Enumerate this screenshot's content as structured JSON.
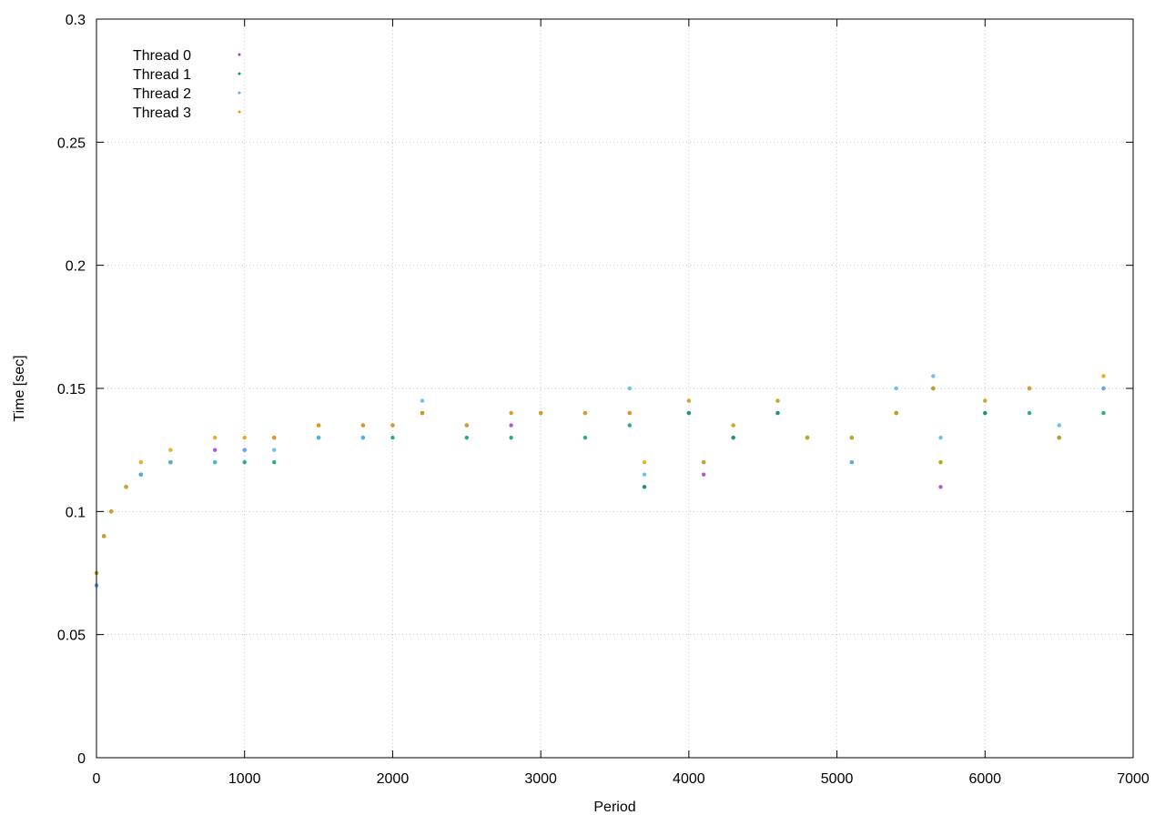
{
  "chart_data": {
    "type": "scatter",
    "title": "",
    "xlabel": "Period",
    "ylabel": "Time [sec]",
    "xlim": [
      0,
      7000
    ],
    "ylim": [
      0,
      0.3
    ],
    "x_ticks": [
      0,
      1000,
      2000,
      3000,
      4000,
      5000,
      6000,
      7000
    ],
    "x_tick_labels": [
      "0",
      "1000",
      "2000",
      "3000",
      "4000",
      "5000",
      "6000",
      "7000"
    ],
    "y_ticks": [
      0,
      0.05,
      0.1,
      0.15,
      0.2,
      0.25,
      0.3
    ],
    "y_tick_labels": [
      "0",
      "0.05",
      "0.1",
      "0.15",
      "0.2",
      "0.25",
      "0.3"
    ],
    "grid": true,
    "legend_position": "top-left",
    "series": [
      {
        "name": "Thread 0",
        "color": "#a040c0",
        "x": [
          0,
          50,
          100,
          200,
          300,
          500,
          800,
          1000,
          1200,
          1500,
          1800,
          2000,
          2200,
          2500,
          2800,
          3000,
          3300,
          3600,
          3700,
          4000,
          4100,
          4300,
          4600,
          4800,
          5100,
          5400,
          5650,
          5700,
          6000,
          6300,
          6500,
          6800
        ],
        "y": [
          0.07,
          0.09,
          0.1,
          0.11,
          0.115,
          0.12,
          0.125,
          0.125,
          0.13,
          0.135,
          0.135,
          0.135,
          0.14,
          0.135,
          0.135,
          0.14,
          0.14,
          0.14,
          0.11,
          0.14,
          0.115,
          0.13,
          0.14,
          0.13,
          0.12,
          0.14,
          0.15,
          0.11,
          0.14,
          0.15,
          0.13,
          0.15
        ]
      },
      {
        "name": "Thread 1",
        "color": "#009e73",
        "x": [
          0,
          50,
          100,
          200,
          300,
          500,
          800,
          1000,
          1200,
          1500,
          1800,
          2000,
          2200,
          2500,
          2800,
          3000,
          3300,
          3600,
          3700,
          4000,
          4100,
          4300,
          4600,
          4800,
          5100,
          5400,
          5650,
          5700,
          6000,
          6300,
          6500,
          6800
        ],
        "y": [
          0.075,
          0.09,
          0.1,
          0.11,
          0.115,
          0.12,
          0.12,
          0.12,
          0.12,
          0.13,
          0.13,
          0.13,
          0.14,
          0.13,
          0.13,
          0.14,
          0.13,
          0.135,
          0.11,
          0.14,
          0.12,
          0.13,
          0.14,
          0.13,
          0.13,
          0.14,
          0.15,
          0.12,
          0.14,
          0.14,
          0.13,
          0.14
        ]
      },
      {
        "name": "Thread 2",
        "color": "#56b4e9",
        "x": [
          0,
          50,
          100,
          200,
          300,
          500,
          800,
          1000,
          1200,
          1500,
          1800,
          2000,
          2200,
          2500,
          2800,
          3000,
          3300,
          3600,
          3700,
          4000,
          4100,
          4300,
          4600,
          4800,
          5100,
          5400,
          5650,
          5700,
          6000,
          6300,
          6500,
          6800
        ],
        "y": [
          0.07,
          0.09,
          0.1,
          0.11,
          0.115,
          0.12,
          0.12,
          0.125,
          0.125,
          0.13,
          0.13,
          0.135,
          0.145,
          0.135,
          0.14,
          0.14,
          0.14,
          0.15,
          0.115,
          0.145,
          0.12,
          0.135,
          0.145,
          0.13,
          0.12,
          0.15,
          0.155,
          0.13,
          0.145,
          0.15,
          0.135,
          0.15
        ]
      },
      {
        "name": "Thread 3",
        "color": "#e69f00",
        "x": [
          0,
          50,
          100,
          200,
          300,
          500,
          800,
          1000,
          1200,
          1500,
          1800,
          2000,
          2200,
          2500,
          2800,
          3000,
          3300,
          3600,
          3700,
          4000,
          4100,
          4300,
          4600,
          4800,
          5100,
          5400,
          5650,
          5700,
          6000,
          6300,
          6500,
          6800
        ],
        "y": [
          0.075,
          0.09,
          0.1,
          0.11,
          0.12,
          0.125,
          0.13,
          0.13,
          0.13,
          0.135,
          0.135,
          0.135,
          0.14,
          0.135,
          0.14,
          0.14,
          0.14,
          0.14,
          0.12,
          0.145,
          0.12,
          0.135,
          0.145,
          0.13,
          0.13,
          0.14,
          0.15,
          0.12,
          0.145,
          0.15,
          0.13,
          0.155
        ]
      }
    ]
  }
}
